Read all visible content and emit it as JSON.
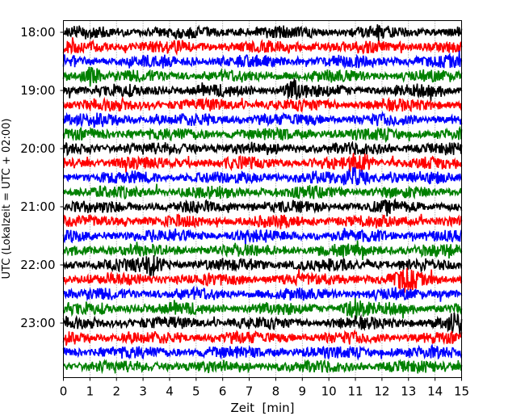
{
  "chart_data": {
    "type": "line",
    "subtype": "helicorder-seismogram",
    "title": "",
    "xlabel": "Zeit  [min]",
    "ylabel": "UTC (Lokalzeit = UTC + 02:00)",
    "xlim": [
      0,
      15
    ],
    "x_ticks": [
      "0",
      "1",
      "2",
      "3",
      "4",
      "5",
      "6",
      "7",
      "8",
      "9",
      "10",
      "11",
      "12",
      "13",
      "14",
      "15"
    ],
    "y_ticks": [
      "18:00",
      "19:00",
      "20:00",
      "21:00",
      "22:00",
      "23:00"
    ],
    "row_interval_min": 15,
    "row_start_times": [
      "18:00",
      "18:15",
      "18:30",
      "18:45",
      "19:00",
      "19:15",
      "19:30",
      "19:45",
      "20:00",
      "20:15",
      "20:30",
      "20:45",
      "21:00",
      "21:15",
      "21:30",
      "21:45",
      "22:00",
      "22:15",
      "22:30",
      "22:45",
      "23:00",
      "23:15",
      "23:30",
      "23:45"
    ],
    "trace_colors": [
      "#000000",
      "#ff0000",
      "#0000ff",
      "#008000"
    ],
    "grid": "vertical dotted at each minute",
    "notable_events": [
      {
        "row": "18:45",
        "minute": 1.0
      },
      {
        "row": "19:00",
        "minute": 8.7
      },
      {
        "row": "20:15",
        "minute": 11.2
      },
      {
        "row": "20:30",
        "minute": 11.0
      },
      {
        "row": "22:00",
        "minute": 3.3
      },
      {
        "row": "22:15",
        "minute": 12.9
      },
      {
        "row": "22:45",
        "minute": 11.0
      },
      {
        "row": "23:00",
        "minute": 14.9
      }
    ]
  }
}
